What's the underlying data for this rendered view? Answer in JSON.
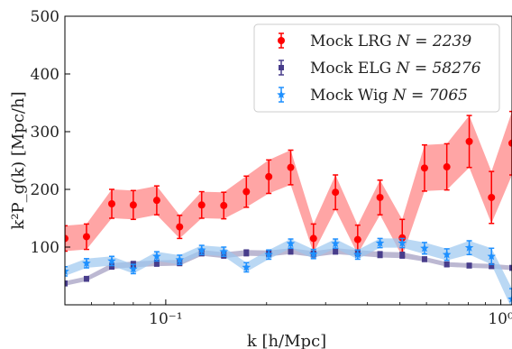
{
  "chart_data": {
    "type": "line",
    "x_scale": "log",
    "xlim": [
      0.05,
      1.08
    ],
    "ylim": [
      0,
      500
    ],
    "xlabel": "k [h/Mpc]",
    "ylabel": "k²P_g(k) [Mpc/h]",
    "x_tick_labels": [
      {
        "value": 0.1,
        "text": "10⁻¹"
      },
      {
        "value": 1.0,
        "text": "10⁰"
      }
    ],
    "y_tick_labels": [
      {
        "value": 100,
        "text": "100"
      },
      {
        "value": 200,
        "text": "200"
      },
      {
        "value": 300,
        "text": "300"
      },
      {
        "value": 400,
        "text": "400"
      },
      {
        "value": 500,
        "text": "500"
      }
    ],
    "grid": false,
    "legend_position": "top-right",
    "series": [
      {
        "name": "Mock LRG N = 2239",
        "legend_label": "Mock LRG ",
        "legend_math": "N = 2239",
        "color": "#ff0000",
        "band_color": "#ff7f7f",
        "marker": "circle",
        "x": [
          0.05,
          0.058,
          0.069,
          0.08,
          0.094,
          0.11,
          0.128,
          0.149,
          0.174,
          0.203,
          0.236,
          0.276,
          0.321,
          0.374,
          0.436,
          0.508,
          0.592,
          0.69,
          0.805,
          0.938,
          1.08
        ],
        "y": [
          115,
          118,
          175,
          173,
          181,
          135,
          173,
          172,
          196,
          222,
          238,
          115,
          195,
          113,
          186,
          116,
          237,
          239,
          283,
          186,
          280
        ],
        "yerr": [
          22,
          22,
          25,
          25,
          25,
          20,
          23,
          23,
          27,
          29,
          30,
          25,
          30,
          25,
          30,
          32,
          40,
          40,
          45,
          45,
          55
        ]
      },
      {
        "name": "Mock ELG N = 58276",
        "legend_label": "Mock ELG ",
        "legend_math": "N = 58276",
        "color": "#483d8b",
        "band_color": "#9f9abf",
        "marker": "square",
        "x": [
          0.05,
          0.058,
          0.069,
          0.08,
          0.094,
          0.11,
          0.128,
          0.149,
          0.174,
          0.203,
          0.236,
          0.276,
          0.321,
          0.374,
          0.436,
          0.508,
          0.592,
          0.69,
          0.805,
          0.938,
          1.08
        ],
        "y": [
          37,
          45,
          67,
          70,
          72,
          73,
          90,
          86,
          90,
          89,
          93,
          88,
          93,
          90,
          87,
          86,
          79,
          70,
          68,
          67,
          64
        ],
        "yerr": [
          4,
          4,
          5,
          5,
          5,
          5,
          5,
          5,
          5,
          5,
          5,
          5,
          5,
          5,
          5,
          5,
          4,
          4,
          4,
          4,
          4
        ]
      },
      {
        "name": "Mock Wig N = 7065",
        "legend_label": "Mock Wig ",
        "legend_math": "N = 7065",
        "color": "#1e90ff",
        "band_color": "#9cc7f0",
        "marker": "star",
        "x": [
          0.05,
          0.058,
          0.069,
          0.08,
          0.094,
          0.11,
          0.128,
          0.149,
          0.174,
          0.203,
          0.236,
          0.276,
          0.321,
          0.374,
          0.436,
          0.508,
          0.592,
          0.69,
          0.805,
          0.938,
          1.08
        ],
        "y": [
          58,
          72,
          76,
          62,
          84,
          78,
          95,
          92,
          65,
          87,
          106,
          88,
          106,
          87,
          107,
          107,
          98,
          87,
          99,
          84,
          10
        ],
        "yerr": [
          8,
          8,
          8,
          8,
          8,
          8,
          8,
          8,
          8,
          8,
          8,
          8,
          8,
          8,
          8,
          8,
          10,
          10,
          12,
          14,
          18
        ]
      }
    ]
  }
}
